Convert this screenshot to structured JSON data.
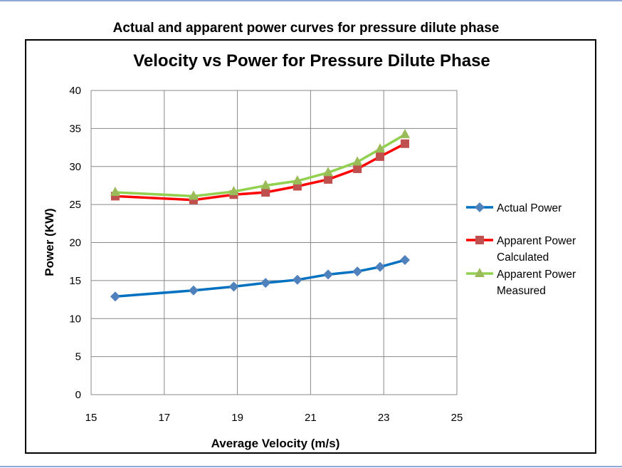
{
  "slide_title": "Actual and apparent power curves for pressure dilute phase",
  "chart_data": {
    "type": "line",
    "title": "Velocity vs Power for Pressure Dilute Phase",
    "xlabel": "Average Velocity (m/s)",
    "ylabel": "Power (KW)",
    "xlim": [
      15,
      25
    ],
    "ylim": [
      0,
      40
    ],
    "xticks": [
      15,
      17,
      19,
      21,
      23,
      25
    ],
    "yticks": [
      0,
      5,
      10,
      15,
      20,
      25,
      30,
      35,
      40
    ],
    "grid": true,
    "legend_position": "right",
    "x": [
      15.66,
      17.8,
      18.9,
      19.77,
      20.64,
      21.48,
      22.28,
      22.9,
      23.58
    ],
    "series": [
      {
        "name": "Actual Power",
        "color": "#0070c0",
        "marker_color": "#4f81bd",
        "marker": "diamond",
        "values": [
          12.9,
          13.7,
          14.2,
          14.7,
          15.1,
          15.8,
          16.2,
          16.8,
          17.7
        ]
      },
      {
        "name": "Apparent Power Calculated",
        "color": "#ff0000",
        "marker_color": "#c0504d",
        "marker": "square",
        "values": [
          26.1,
          25.6,
          26.3,
          26.6,
          27.4,
          28.3,
          29.7,
          31.3,
          33.0
        ]
      },
      {
        "name": "Apparent Power Measured",
        "color": "#92d050",
        "marker_color": "#9bbb59",
        "marker": "triangle",
        "values": [
          26.6,
          26.1,
          26.7,
          27.5,
          28.1,
          29.2,
          30.6,
          32.3,
          34.2
        ]
      }
    ],
    "legend_lines": [
      [
        "Actual Power"
      ],
      [
        "Apparent Power",
        "Calculated"
      ],
      [
        "Apparent Power",
        "Measured"
      ]
    ]
  }
}
